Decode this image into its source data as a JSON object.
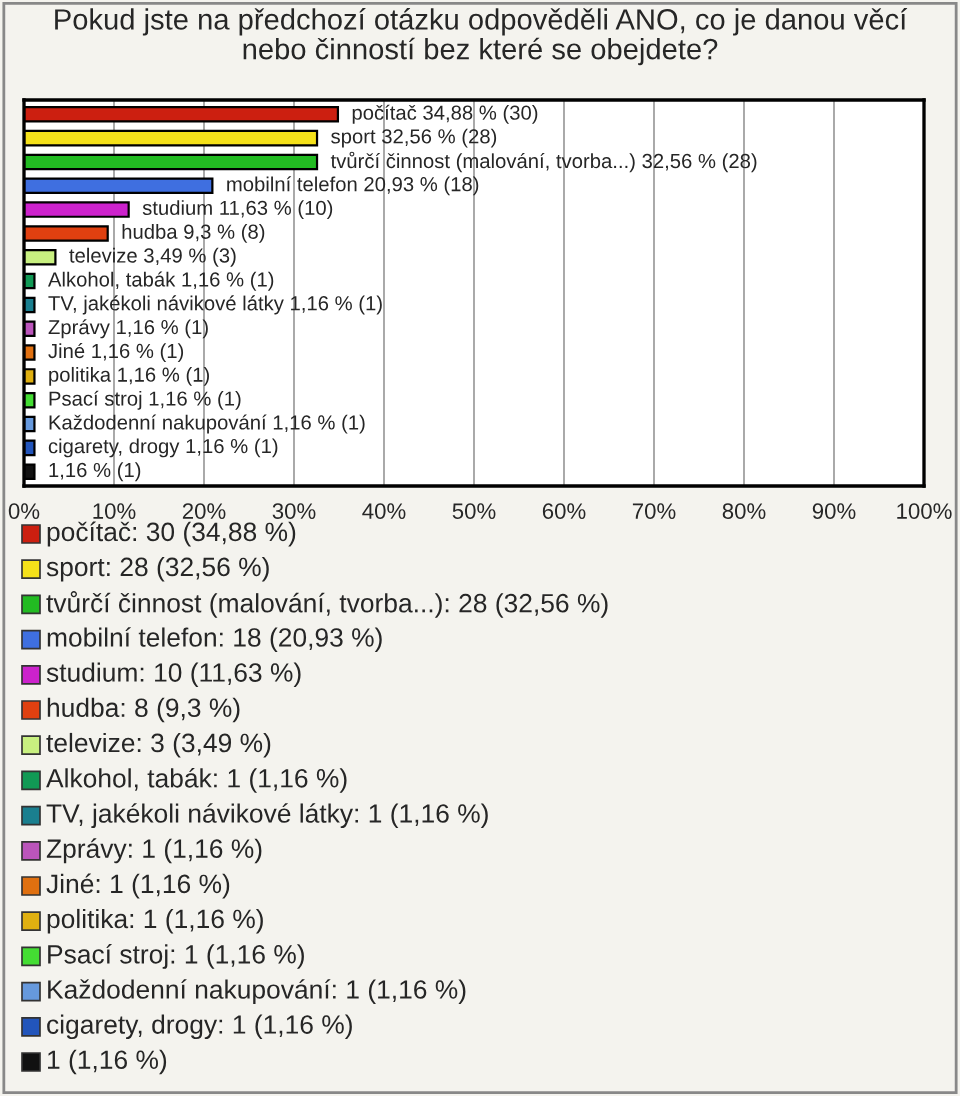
{
  "chart_data": {
    "type": "bar",
    "orientation": "horizontal",
    "title": "Pokud jste na předchozí otázku odpověděli ANO, co je danou věcí\nnebo činností bez které se obejdete?",
    "categories": [
      null,
      null,
      null,
      null,
      null,
      null,
      null,
      null,
      null,
      null,
      null,
      null,
      null,
      null,
      null,
      null
    ],
    "values": [
      34.88,
      32.56,
      32.56,
      20.93,
      11.63,
      9.3,
      3.49,
      1.16,
      1.16,
      1.16,
      1.16,
      1.16,
      1.16,
      1.16,
      1.16,
      1.16
    ],
    "colors": [
      "#cc1f10",
      "#f5e11a",
      "#22bb22",
      "#3f6fe0",
      "#cc22cc",
      "#e04010",
      "#c8f080",
      "#119955",
      "#1a7f8f",
      "#bb55bb",
      "#e07010",
      "#e0b010",
      "#44dd33",
      "#6699dd",
      "#2255bb",
      "#111111"
    ],
    "value_labels": [
      "počítač 34,88 % (30)",
      "sport 32,56 % (28)",
      "tvůrčí činnost (malování, tvorba...) 32,56 % (28)",
      "mobilní telefon 20,93 % (18)",
      "studium 11,63 % (10)",
      "hudba 9,3 % (8)",
      "televize 3,49 % (3)",
      "Alkohol, tabák 1,16 % (1)",
      "TV, jakékoli návikové látky 1,16 % (1)",
      "Zprávy 1,16 % (1)",
      "Jiné 1,16 % (1)",
      "politika 1,16 % (1)",
      "Psací stroj 1,16 % (1)",
      "Každodenní nakupování 1,16 % (1)",
      "cigarety, drogy 1,16 % (1)",
      "1,16 % (1)"
    ],
    "annotations": [
      "počítač: 30 (34,88 %)",
      "sport: 28 (32,56 %)",
      "tvůrčí činnost (malování, tvorba...): 28 (32,56 %)",
      "mobilní telefon: 18 (20,93 %)",
      "studium: 10 (11,63 %)",
      "hudba: 8 (9,3 %)",
      "televize: 3 (3,49 %)",
      "Alkohol, tabák: 1 (1,16 %)",
      "TV, jakékoli návikové látky: 1 (1,16 %)",
      "Zprávy: 1 (1,16 %)",
      "Jiné: 1 (1,16 %)",
      "politika: 1 (1,16 %)",
      "Psací stroj: 1 (1,16 %)",
      "Každodenní nakupování: 1 (1,16 %)",
      "cigarety, drogy: 1 (1,16 %)",
      "1 (1,16 %)"
    ],
    "xlim": [
      0,
      100
    ],
    "xticks": [
      {
        "value": 0,
        "label": "0%"
      },
      {
        "value": 10,
        "label": "10%"
      },
      {
        "value": 20,
        "label": "20%"
      },
      {
        "value": 30,
        "label": "30%"
      },
      {
        "value": 40,
        "label": "40%"
      },
      {
        "value": 50,
        "label": "50%"
      },
      {
        "value": 60,
        "label": "60%"
      },
      {
        "value": 70,
        "label": "70%"
      },
      {
        "value": 80,
        "label": "80%"
      },
      {
        "value": 90,
        "label": "90%"
      },
      {
        "value": 100,
        "label": "100%"
      }
    ],
    "grid": "x",
    "tick_labels": "x"
  }
}
